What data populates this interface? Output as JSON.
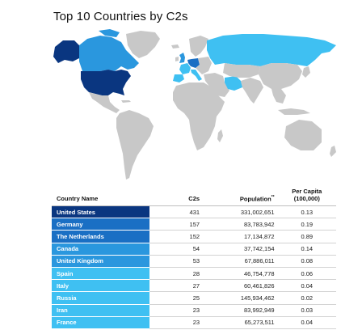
{
  "title": "Top 10 Countries by C2s",
  "colors": {
    "tier1": "#0a3680",
    "tier2": "#1a6fc4",
    "tier3": "#2a97de",
    "tier4": "#3fc0f2",
    "land": "#c8c8c8"
  },
  "table": {
    "headers": {
      "country": "Country Name",
      "c2s": "C2s",
      "population": "Population",
      "population_mark": "**",
      "per_capita": "Per Capita",
      "per_capita_sub": "(100,000)"
    },
    "rows": [
      {
        "country": "United States",
        "c2s": "431",
        "population": "331,002,651",
        "per_capita": "0.13",
        "tier": "tier1"
      },
      {
        "country": "Germany",
        "c2s": "157",
        "population": "83,783,942",
        "per_capita": "0.19",
        "tier": "tier2"
      },
      {
        "country": "The Netherlands",
        "c2s": "152",
        "population": "17,134,872",
        "per_capita": "0.89",
        "tier": "tier2"
      },
      {
        "country": "Canada",
        "c2s": "54",
        "population": "37,742,154",
        "per_capita": "0.14",
        "tier": "tier3"
      },
      {
        "country": "United Kingdom",
        "c2s": "53",
        "population": "67,886,011",
        "per_capita": "0.08",
        "tier": "tier3"
      },
      {
        "country": "Spain",
        "c2s": "28",
        "population": "46,754,778",
        "per_capita": "0.06",
        "tier": "tier4"
      },
      {
        "country": "Italy",
        "c2s": "27",
        "population": "60,461,826",
        "per_capita": "0.04",
        "tier": "tier4"
      },
      {
        "country": "Russia",
        "c2s": "25",
        "population": "145,934,462",
        "per_capita": "0.02",
        "tier": "tier4"
      },
      {
        "country": "Iran",
        "c2s": "23",
        "population": "83,992,949",
        "per_capita": "0.03",
        "tier": "tier4"
      },
      {
        "country": "France",
        "c2s": "23",
        "population": "65,273,511",
        "per_capita": "0.04",
        "tier": "tier4"
      }
    ]
  },
  "chart_data": {
    "type": "table",
    "title": "Top 10 Countries by C2s",
    "columns": [
      "Country Name",
      "C2s",
      "Population**",
      "Per Capita (100,000)"
    ],
    "rows": [
      [
        "United States",
        431,
        331002651,
        0.13
      ],
      [
        "Germany",
        157,
        83783942,
        0.19
      ],
      [
        "The Netherlands",
        152,
        17134872,
        0.89
      ],
      [
        "Canada",
        54,
        37742154,
        0.14
      ],
      [
        "United Kingdom",
        53,
        67886011,
        0.08
      ],
      [
        "Spain",
        28,
        46754778,
        0.06
      ],
      [
        "Italy",
        27,
        60461826,
        0.04
      ],
      [
        "Russia",
        25,
        145934462,
        0.02
      ],
      [
        "Iran",
        23,
        83992949,
        0.03
      ],
      [
        "France",
        23,
        65273511,
        0.04
      ]
    ]
  }
}
